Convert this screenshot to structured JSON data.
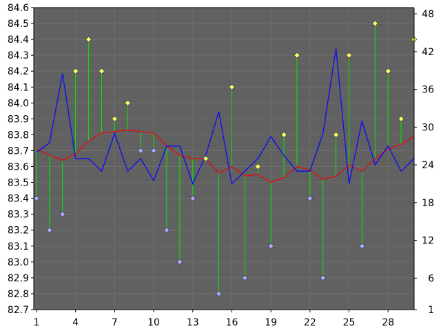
{
  "chart_data": {
    "type": "line",
    "title": "",
    "xlabel": "",
    "ylabel": "",
    "x": [
      1,
      2,
      3,
      4,
      5,
      6,
      7,
      8,
      9,
      10,
      11,
      12,
      13,
      14,
      15,
      16,
      17,
      18,
      19,
      20,
      21,
      22,
      23,
      24,
      25,
      26,
      27,
      28,
      29,
      30
    ],
    "x_ticks": [
      1,
      4,
      7,
      10,
      13,
      16,
      19,
      22,
      25,
      28
    ],
    "ylim_left": [
      82.7,
      84.6
    ],
    "y_ticks_left": [
      82.7,
      82.8,
      82.9,
      83.0,
      83.1,
      83.2,
      83.3,
      83.4,
      83.5,
      83.6,
      83.7,
      83.8,
      83.9,
      84.0,
      84.1,
      84.2,
      84.3,
      84.4,
      84.5,
      84.6
    ],
    "ylim_right": [
      1,
      49
    ],
    "y_ticks_right": [
      1,
      6,
      12,
      18,
      24,
      30,
      36,
      42,
      48
    ],
    "grid": true,
    "background_color": "#616161",
    "series": [
      {
        "style": "diamond-markers-with-drops",
        "axis": "left",
        "marker_colors": {
          "above_average": "#ffff66",
          "below_average": "#a8a8ff"
        },
        "drop_line_color": "#00ee00",
        "values": [
          83.4,
          83.2,
          83.3,
          84.2,
          84.4,
          84.2,
          83.9,
          84.0,
          83.7,
          83.7,
          83.2,
          83.0,
          83.4,
          83.65,
          82.8,
          84.1,
          82.9,
          83.6,
          83.1,
          83.8,
          84.3,
          83.4,
          82.9,
          83.8,
          84.3,
          83.1,
          84.5,
          84.2,
          83.9,
          84.4
        ]
      },
      {
        "style": "line",
        "axis": "right",
        "color": "#1010ee",
        "values": [
          26,
          27.5,
          38.5,
          25,
          25,
          23,
          29,
          23,
          25,
          21.5,
          27,
          27,
          21,
          25.5,
          32.5,
          21,
          23,
          25,
          28.5,
          25.5,
          23,
          23,
          29,
          42.5,
          21,
          31,
          24,
          27,
          23,
          25
        ]
      },
      {
        "style": "line",
        "axis": "left",
        "color": "#dd1111",
        "values": [
          83.71,
          83.67,
          83.64,
          83.68,
          83.76,
          83.81,
          83.82,
          83.83,
          83.82,
          83.81,
          83.73,
          83.67,
          83.65,
          83.65,
          83.56,
          83.6,
          83.54,
          83.55,
          83.5,
          83.53,
          83.6,
          83.58,
          83.52,
          83.54,
          83.61,
          83.57,
          83.65,
          83.71,
          83.74,
          83.79
        ]
      }
    ]
  }
}
